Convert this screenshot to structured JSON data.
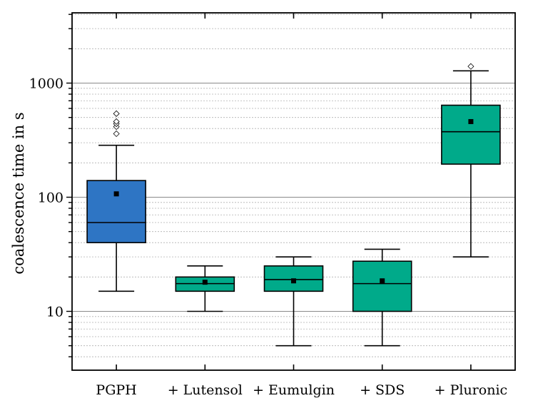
{
  "chart_data": {
    "type": "box",
    "title": "",
    "xlabel": "",
    "ylabel": "coalescence time in s",
    "yscale": "log",
    "ylim": [
      3,
      5000
    ],
    "yticks": [
      10,
      100,
      1000
    ],
    "ytick_labels": [
      "10",
      "100",
      "1000"
    ],
    "grid": "y-minor-dashed",
    "categories": [
      "PGPH",
      "+ Lutensol",
      "+ Eumulgin",
      "+ SDS",
      "+ Pluronic"
    ],
    "boxes": [
      {
        "name": "PGPH",
        "whisker_low": 15,
        "q1": 40,
        "median": 60,
        "q3": 140,
        "whisker_high": 285,
        "mean": 107,
        "outliers": [
          360,
          415,
          440,
          460,
          540
        ],
        "color": "#2e75c4"
      },
      {
        "name": "+ Lutensol",
        "whisker_low": 10,
        "q1": 15,
        "median": 17.5,
        "q3": 20,
        "whisker_high": 25,
        "mean": 18,
        "outliers": [],
        "color": "#00aa8a"
      },
      {
        "name": "+ Eumulgin",
        "whisker_low": 5,
        "q1": 15,
        "median": 19,
        "q3": 25,
        "whisker_high": 30,
        "mean": 18.5,
        "outliers": [],
        "color": "#00aa8a"
      },
      {
        "name": "+ SDS",
        "whisker_low": 5,
        "q1": 10,
        "median": 17.5,
        "q3": 27.5,
        "whisker_high": 35,
        "mean": 18.5,
        "outliers": [],
        "color": "#00aa8a"
      },
      {
        "name": "+ Pluronic",
        "whisker_low": 30,
        "q1": 195,
        "median": 375,
        "q3": 640,
        "whisker_high": 1280,
        "mean": 460,
        "outliers": [
          1400
        ],
        "color": "#00aa8a"
      }
    ]
  }
}
